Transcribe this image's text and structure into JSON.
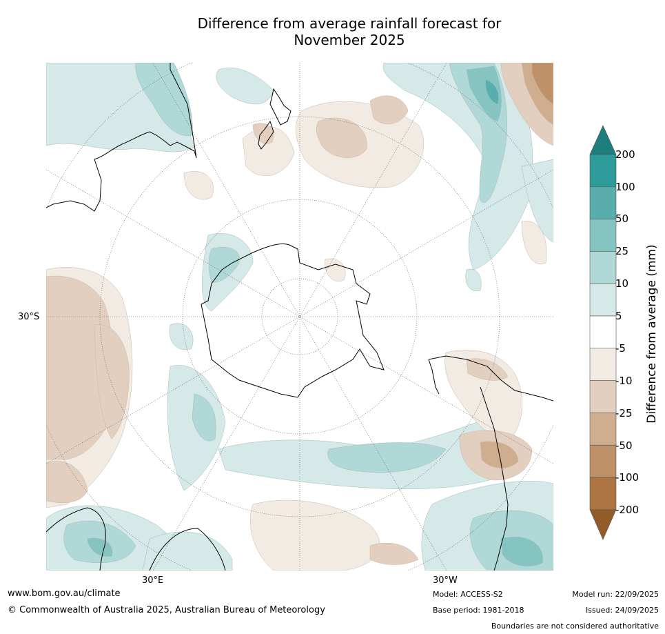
{
  "title": {
    "line1": "Difference from average rainfall forecast for",
    "line2": "November 2025"
  },
  "axis_labels": {
    "lat": "30°S",
    "lon_east": "30°E",
    "lon_west": "30°W"
  },
  "footer": {
    "website": "www.bom.gov.au/climate",
    "copyright": "© Commonwealth of Australia 2025, Australian Bureau of Meteorology",
    "model": "Model: ACCESS-S2",
    "base_period": "Base period: 1981-2018",
    "model_run": "Model run: 22/09/2025",
    "issued": "Issued: 24/09/2025",
    "disclaimer": "Boundaries are not considered authoritative"
  },
  "legend": {
    "title": "Difference from average (mm)",
    "ticks": [
      "200",
      "100",
      "50",
      "25",
      "10",
      "5",
      "-5",
      "-10",
      "-25",
      "-50",
      "-100",
      "-200"
    ],
    "colors_wet": [
      "#1e7e7e",
      "#2e9b9b",
      "#5aadad",
      "#86c4c2",
      "#afd8d6",
      "#d5e9e8"
    ],
    "color_neutral": "#ffffff",
    "colors_dry": [
      "#f2ebe4",
      "#e3cfbf",
      "#cfae8f",
      "#bf9168",
      "#ad7544",
      "#935b27"
    ]
  },
  "colors": {
    "land_outline": "#000000",
    "grid": "#555555",
    "wet_light": "#d5e9e8",
    "wet_mid": "#afd8d6",
    "wet_strong": "#86c4c2",
    "dry_light": "#f2ebe4",
    "dry_mid": "#e3cfbf",
    "dry_strong": "#cfae8f"
  }
}
